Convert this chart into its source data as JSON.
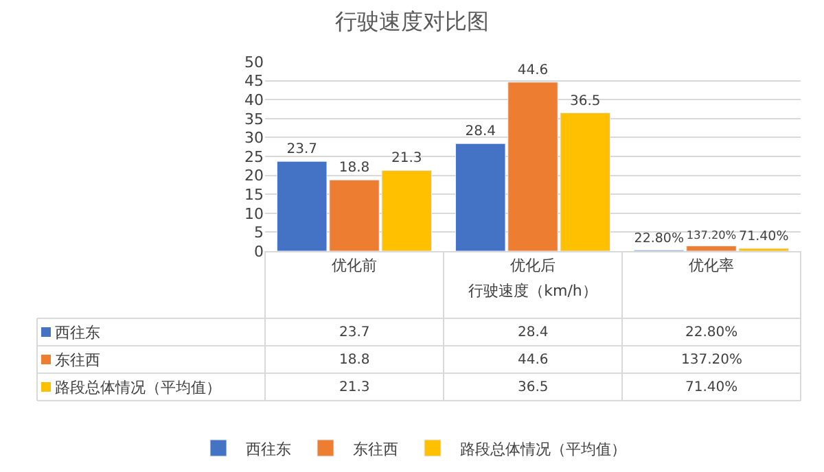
{
  "chart_data": {
    "type": "bar",
    "title": "行驶速度对比图",
    "xlabel": "行驶速度（km/h）",
    "categories": [
      "优化前",
      "优化后",
      "优化率"
    ],
    "series": [
      {
        "name": "西往东",
        "color": "#4472c4",
        "values": [
          23.7,
          28.4,
          0.228
        ],
        "value_labels": [
          "23.7",
          "28.4",
          "22.80%"
        ]
      },
      {
        "name": "东往西",
        "color": "#ed7d31",
        "values": [
          18.8,
          44.6,
          1.372
        ],
        "value_labels": [
          "18.8",
          "44.6",
          "137.20%"
        ]
      },
      {
        "name": "路段总体情况（平均值）",
        "color": "#ffc000",
        "values": [
          21.3,
          36.5,
          0.714
        ],
        "value_labels": [
          "21.3",
          "36.5",
          "71.40%"
        ]
      }
    ],
    "ylim": [
      0,
      50
    ],
    "yticks": [
      0,
      5,
      10,
      15,
      20,
      25,
      30,
      35,
      40,
      45,
      50
    ],
    "grid": "y",
    "legend": "bottom"
  }
}
